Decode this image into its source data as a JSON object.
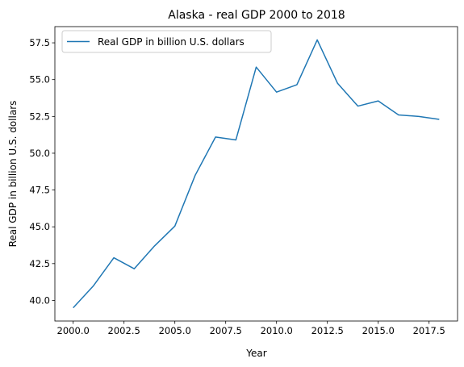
{
  "chart_data": {
    "type": "line",
    "title": "Alaska - real GDP 2000 to 2018",
    "xlabel": "Year",
    "ylabel": "Real GDP in billion U.S. dollars",
    "x": [
      2000,
      2001,
      2002,
      2003,
      2004,
      2005,
      2006,
      2007,
      2008,
      2009,
      2010,
      2011,
      2012,
      2013,
      2014,
      2015,
      2016,
      2017,
      2018
    ],
    "series": [
      {
        "name": "Real GDP in billion U.S. dollars",
        "color": "#1f77b4",
        "values": [
          39.5,
          41.0,
          42.9,
          42.15,
          43.7,
          45.05,
          48.5,
          51.1,
          50.9,
          55.85,
          54.15,
          54.65,
          57.7,
          54.75,
          53.2,
          53.55,
          52.6,
          52.5,
          52.3
        ]
      }
    ],
    "xlim": [
      1999.1,
      2018.9
    ],
    "ylim": [
      38.6,
      58.6
    ],
    "xticks": [
      2000.0,
      2002.5,
      2005.0,
      2007.5,
      2010.0,
      2012.5,
      2015.0,
      2017.5
    ],
    "xtick_labels": [
      "2000.0",
      "2002.5",
      "2005.0",
      "2007.5",
      "2010.0",
      "2012.5",
      "2015.0",
      "2017.5"
    ],
    "yticks": [
      40.0,
      42.5,
      45.0,
      47.5,
      50.0,
      52.5,
      55.0,
      57.5
    ],
    "ytick_labels": [
      "40.0",
      "42.5",
      "45.0",
      "47.5",
      "50.0",
      "52.5",
      "55.0",
      "57.5"
    ],
    "grid": false,
    "legend_position": "top-left"
  }
}
